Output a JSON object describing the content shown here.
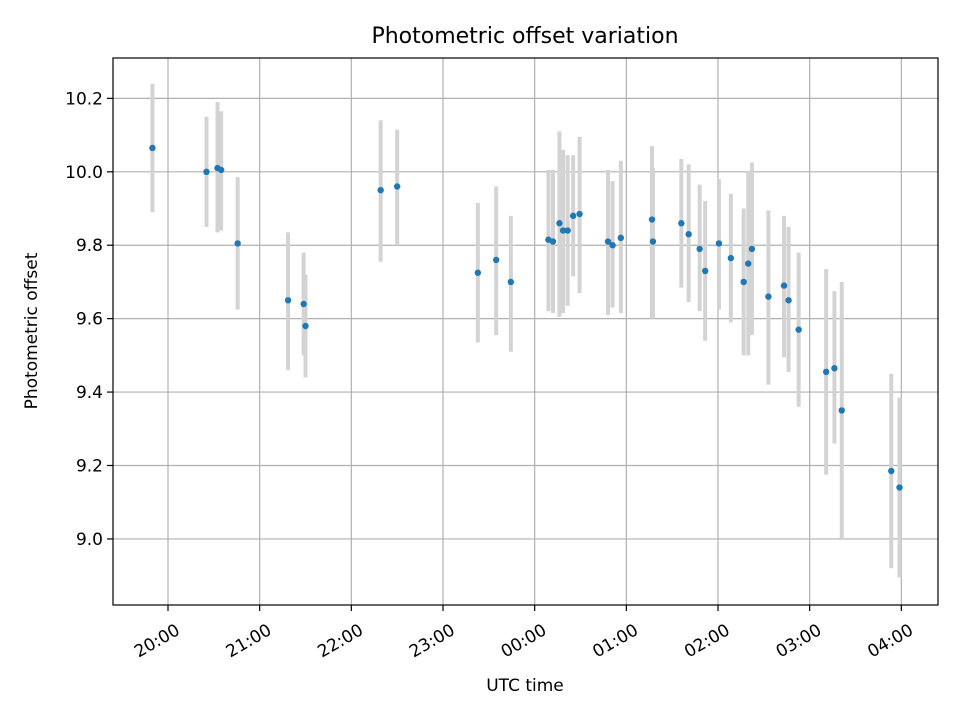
{
  "chart_data": {
    "type": "scatter",
    "title": "Photometric offset variation",
    "xlabel": "UTC time",
    "ylabel": "Photometric offset",
    "x_unit": "hours since 00:00 UTC",
    "xlim": [
      -4.6,
      4.4
    ],
    "ylim": [
      8.82,
      10.31
    ],
    "xticks": [
      {
        "value": -4,
        "label": "20:00"
      },
      {
        "value": -3,
        "label": "21:00"
      },
      {
        "value": -2,
        "label": "22:00"
      },
      {
        "value": -1,
        "label": "23:00"
      },
      {
        "value": 0,
        "label": "00:00"
      },
      {
        "value": 1,
        "label": "01:00"
      },
      {
        "value": 2,
        "label": "02:00"
      },
      {
        "value": 3,
        "label": "03:00"
      },
      {
        "value": 4,
        "label": "04:00"
      }
    ],
    "yticks": [
      {
        "value": 9.0,
        "label": "9.0"
      },
      {
        "value": 9.2,
        "label": "9.2"
      },
      {
        "value": 9.4,
        "label": "9.4"
      },
      {
        "value": 9.6,
        "label": "9.6"
      },
      {
        "value": 9.8,
        "label": "9.8"
      },
      {
        "value": 10.0,
        "label": "10.0"
      },
      {
        "value": 10.2,
        "label": "10.2"
      }
    ],
    "grid": true,
    "colors": {
      "point": "#1f77b4",
      "errorbar": "#d3d3d3",
      "grid": "#b0b0b0"
    },
    "points": [
      {
        "x": -4.17,
        "y": 10.065,
        "lo": 9.89,
        "hi": 10.24
      },
      {
        "x": -3.58,
        "y": 10.0,
        "lo": 9.85,
        "hi": 10.15
      },
      {
        "x": -3.46,
        "y": 10.01,
        "lo": 9.835,
        "hi": 10.19
      },
      {
        "x": -3.42,
        "y": 10.005,
        "lo": 9.84,
        "hi": 10.165
      },
      {
        "x": -3.24,
        "y": 9.805,
        "lo": 9.625,
        "hi": 9.985
      },
      {
        "x": -2.69,
        "y": 9.65,
        "lo": 9.46,
        "hi": 9.835
      },
      {
        "x": -2.52,
        "y": 9.64,
        "lo": 9.5,
        "hi": 9.78
      },
      {
        "x": -2.5,
        "y": 9.58,
        "lo": 9.44,
        "hi": 9.72
      },
      {
        "x": -1.68,
        "y": 9.95,
        "lo": 9.755,
        "hi": 10.14
      },
      {
        "x": -1.5,
        "y": 9.96,
        "lo": 9.8,
        "hi": 10.115
      },
      {
        "x": -0.62,
        "y": 9.725,
        "lo": 9.535,
        "hi": 9.915
      },
      {
        "x": -0.42,
        "y": 9.76,
        "lo": 9.555,
        "hi": 9.96
      },
      {
        "x": -0.26,
        "y": 9.7,
        "lo": 9.51,
        "hi": 9.88
      },
      {
        "x": 0.15,
        "y": 9.815,
        "lo": 9.62,
        "hi": 10.005
      },
      {
        "x": 0.2,
        "y": 9.81,
        "lo": 9.615,
        "hi": 10.005
      },
      {
        "x": 0.27,
        "y": 9.86,
        "lo": 9.605,
        "hi": 10.11
      },
      {
        "x": 0.31,
        "y": 9.84,
        "lo": 9.615,
        "hi": 10.06
      },
      {
        "x": 0.36,
        "y": 9.84,
        "lo": 9.635,
        "hi": 10.045
      },
      {
        "x": 0.42,
        "y": 9.88,
        "lo": 9.715,
        "hi": 10.045
      },
      {
        "x": 0.49,
        "y": 9.885,
        "lo": 9.67,
        "hi": 10.095
      },
      {
        "x": 0.8,
        "y": 9.81,
        "lo": 9.61,
        "hi": 10.005
      },
      {
        "x": 0.85,
        "y": 9.8,
        "lo": 9.63,
        "hi": 9.975
      },
      {
        "x": 0.94,
        "y": 9.82,
        "lo": 9.615,
        "hi": 10.03
      },
      {
        "x": 1.28,
        "y": 9.87,
        "lo": 9.6,
        "hi": 10.07
      },
      {
        "x": 1.29,
        "y": 9.81,
        "lo": 9.6,
        "hi": 10.01
      },
      {
        "x": 1.6,
        "y": 9.86,
        "lo": 9.685,
        "hi": 10.035
      },
      {
        "x": 1.68,
        "y": 9.83,
        "lo": 9.645,
        "hi": 10.02
      },
      {
        "x": 1.8,
        "y": 9.79,
        "lo": 9.62,
        "hi": 9.965
      },
      {
        "x": 1.86,
        "y": 9.73,
        "lo": 9.54,
        "hi": 9.92
      },
      {
        "x": 2.01,
        "y": 9.805,
        "lo": 9.625,
        "hi": 9.98
      },
      {
        "x": 2.14,
        "y": 9.765,
        "lo": 9.59,
        "hi": 9.94
      },
      {
        "x": 2.28,
        "y": 9.7,
        "lo": 9.5,
        "hi": 9.9
      },
      {
        "x": 2.33,
        "y": 9.75,
        "lo": 9.5,
        "hi": 10.0
      },
      {
        "x": 2.37,
        "y": 9.79,
        "lo": 9.555,
        "hi": 10.025
      },
      {
        "x": 2.55,
        "y": 9.66,
        "lo": 9.42,
        "hi": 9.895
      },
      {
        "x": 2.72,
        "y": 9.69,
        "lo": 9.495,
        "hi": 9.88
      },
      {
        "x": 2.77,
        "y": 9.65,
        "lo": 9.455,
        "hi": 9.85
      },
      {
        "x": 2.88,
        "y": 9.57,
        "lo": 9.36,
        "hi": 9.78
      },
      {
        "x": 3.18,
        "y": 9.455,
        "lo": 9.175,
        "hi": 9.735
      },
      {
        "x": 3.27,
        "y": 9.465,
        "lo": 9.26,
        "hi": 9.675
      },
      {
        "x": 3.35,
        "y": 9.35,
        "lo": 9.0,
        "hi": 9.7
      },
      {
        "x": 3.89,
        "y": 9.185,
        "lo": 8.92,
        "hi": 9.45
      },
      {
        "x": 3.98,
        "y": 9.14,
        "lo": 8.895,
        "hi": 9.385
      }
    ]
  }
}
